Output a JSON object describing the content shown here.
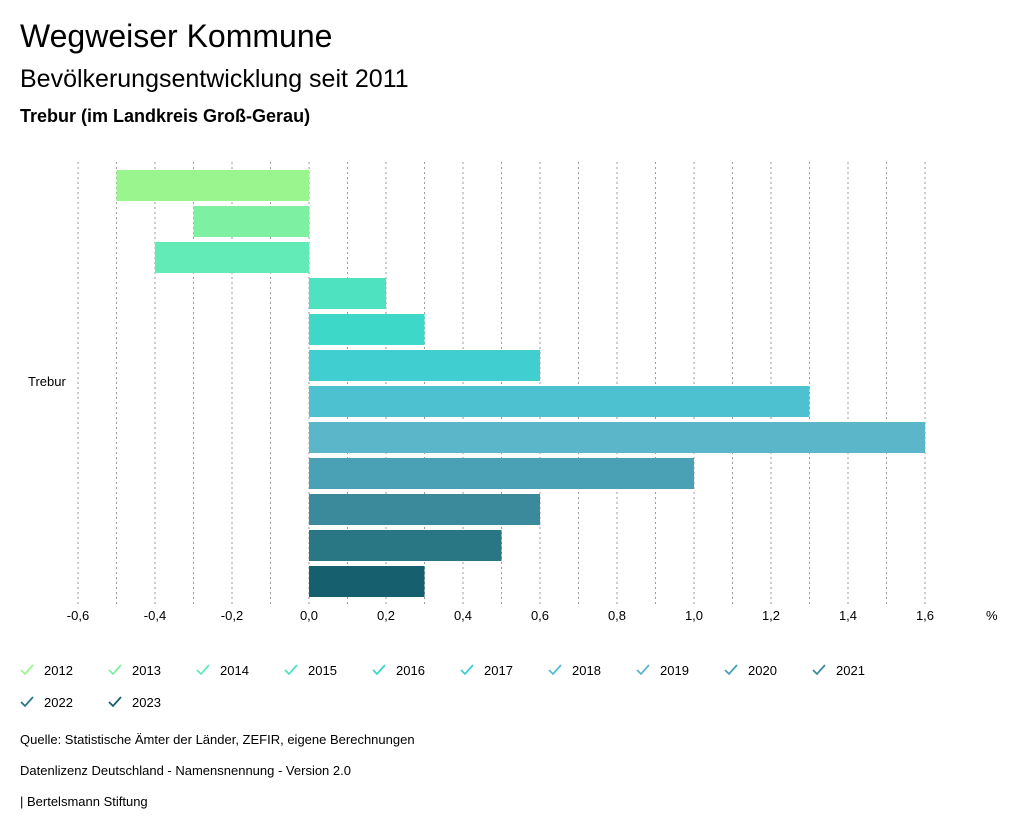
{
  "header": {
    "title": "Wegweiser Kommune",
    "subtitle": "Bevölkerungsentwicklung seit 2011",
    "region": "Trebur (im Landkreis Groß-Gerau)"
  },
  "chart_data": {
    "type": "bar",
    "orientation": "horizontal",
    "categories": [
      "Trebur"
    ],
    "series": [
      {
        "name": "2012",
        "values": [
          -0.5
        ],
        "color": "#9af58e"
      },
      {
        "name": "2013",
        "values": [
          -0.3
        ],
        "color": "#7ef0a2"
      },
      {
        "name": "2014",
        "values": [
          -0.4
        ],
        "color": "#62ebb6"
      },
      {
        "name": "2015",
        "values": [
          0.2
        ],
        "color": "#4ee2c0"
      },
      {
        "name": "2016",
        "values": [
          0.3
        ],
        "color": "#3ed8c8"
      },
      {
        "name": "2017",
        "values": [
          0.6
        ],
        "color": "#40ced0"
      },
      {
        "name": "2018",
        "values": [
          1.3
        ],
        "color": "#4dc1d0"
      },
      {
        "name": "2019",
        "values": [
          1.6
        ],
        "color": "#5cb6ca"
      },
      {
        "name": "2020",
        "values": [
          1.0
        ],
        "color": "#4aa0b4"
      },
      {
        "name": "2021",
        "values": [
          0.6
        ],
        "color": "#3a8a9b"
      },
      {
        "name": "2022",
        "values": [
          0.5
        ],
        "color": "#297684"
      },
      {
        "name": "2023",
        "values": [
          0.3
        ],
        "color": "#165f6f"
      }
    ],
    "xlim": [
      -0.6,
      1.6
    ],
    "x_ticks": [
      "-0,6",
      "-0,4",
      "-0,2",
      "0,0",
      "0,2",
      "0,4",
      "0,6",
      "0,8",
      "1,0",
      "1,2",
      "1,4",
      "1,6"
    ],
    "x_unit": "%",
    "grid": true,
    "legend": "bottom"
  },
  "footer": {
    "source": "Quelle: Statistische Ämter der Länder, ZEFIR, eigene Berechnungen",
    "license": "Datenlizenz Deutschland - Namensnennung - Version 2.0",
    "publisher": "| Bertelsmann Stiftung"
  }
}
